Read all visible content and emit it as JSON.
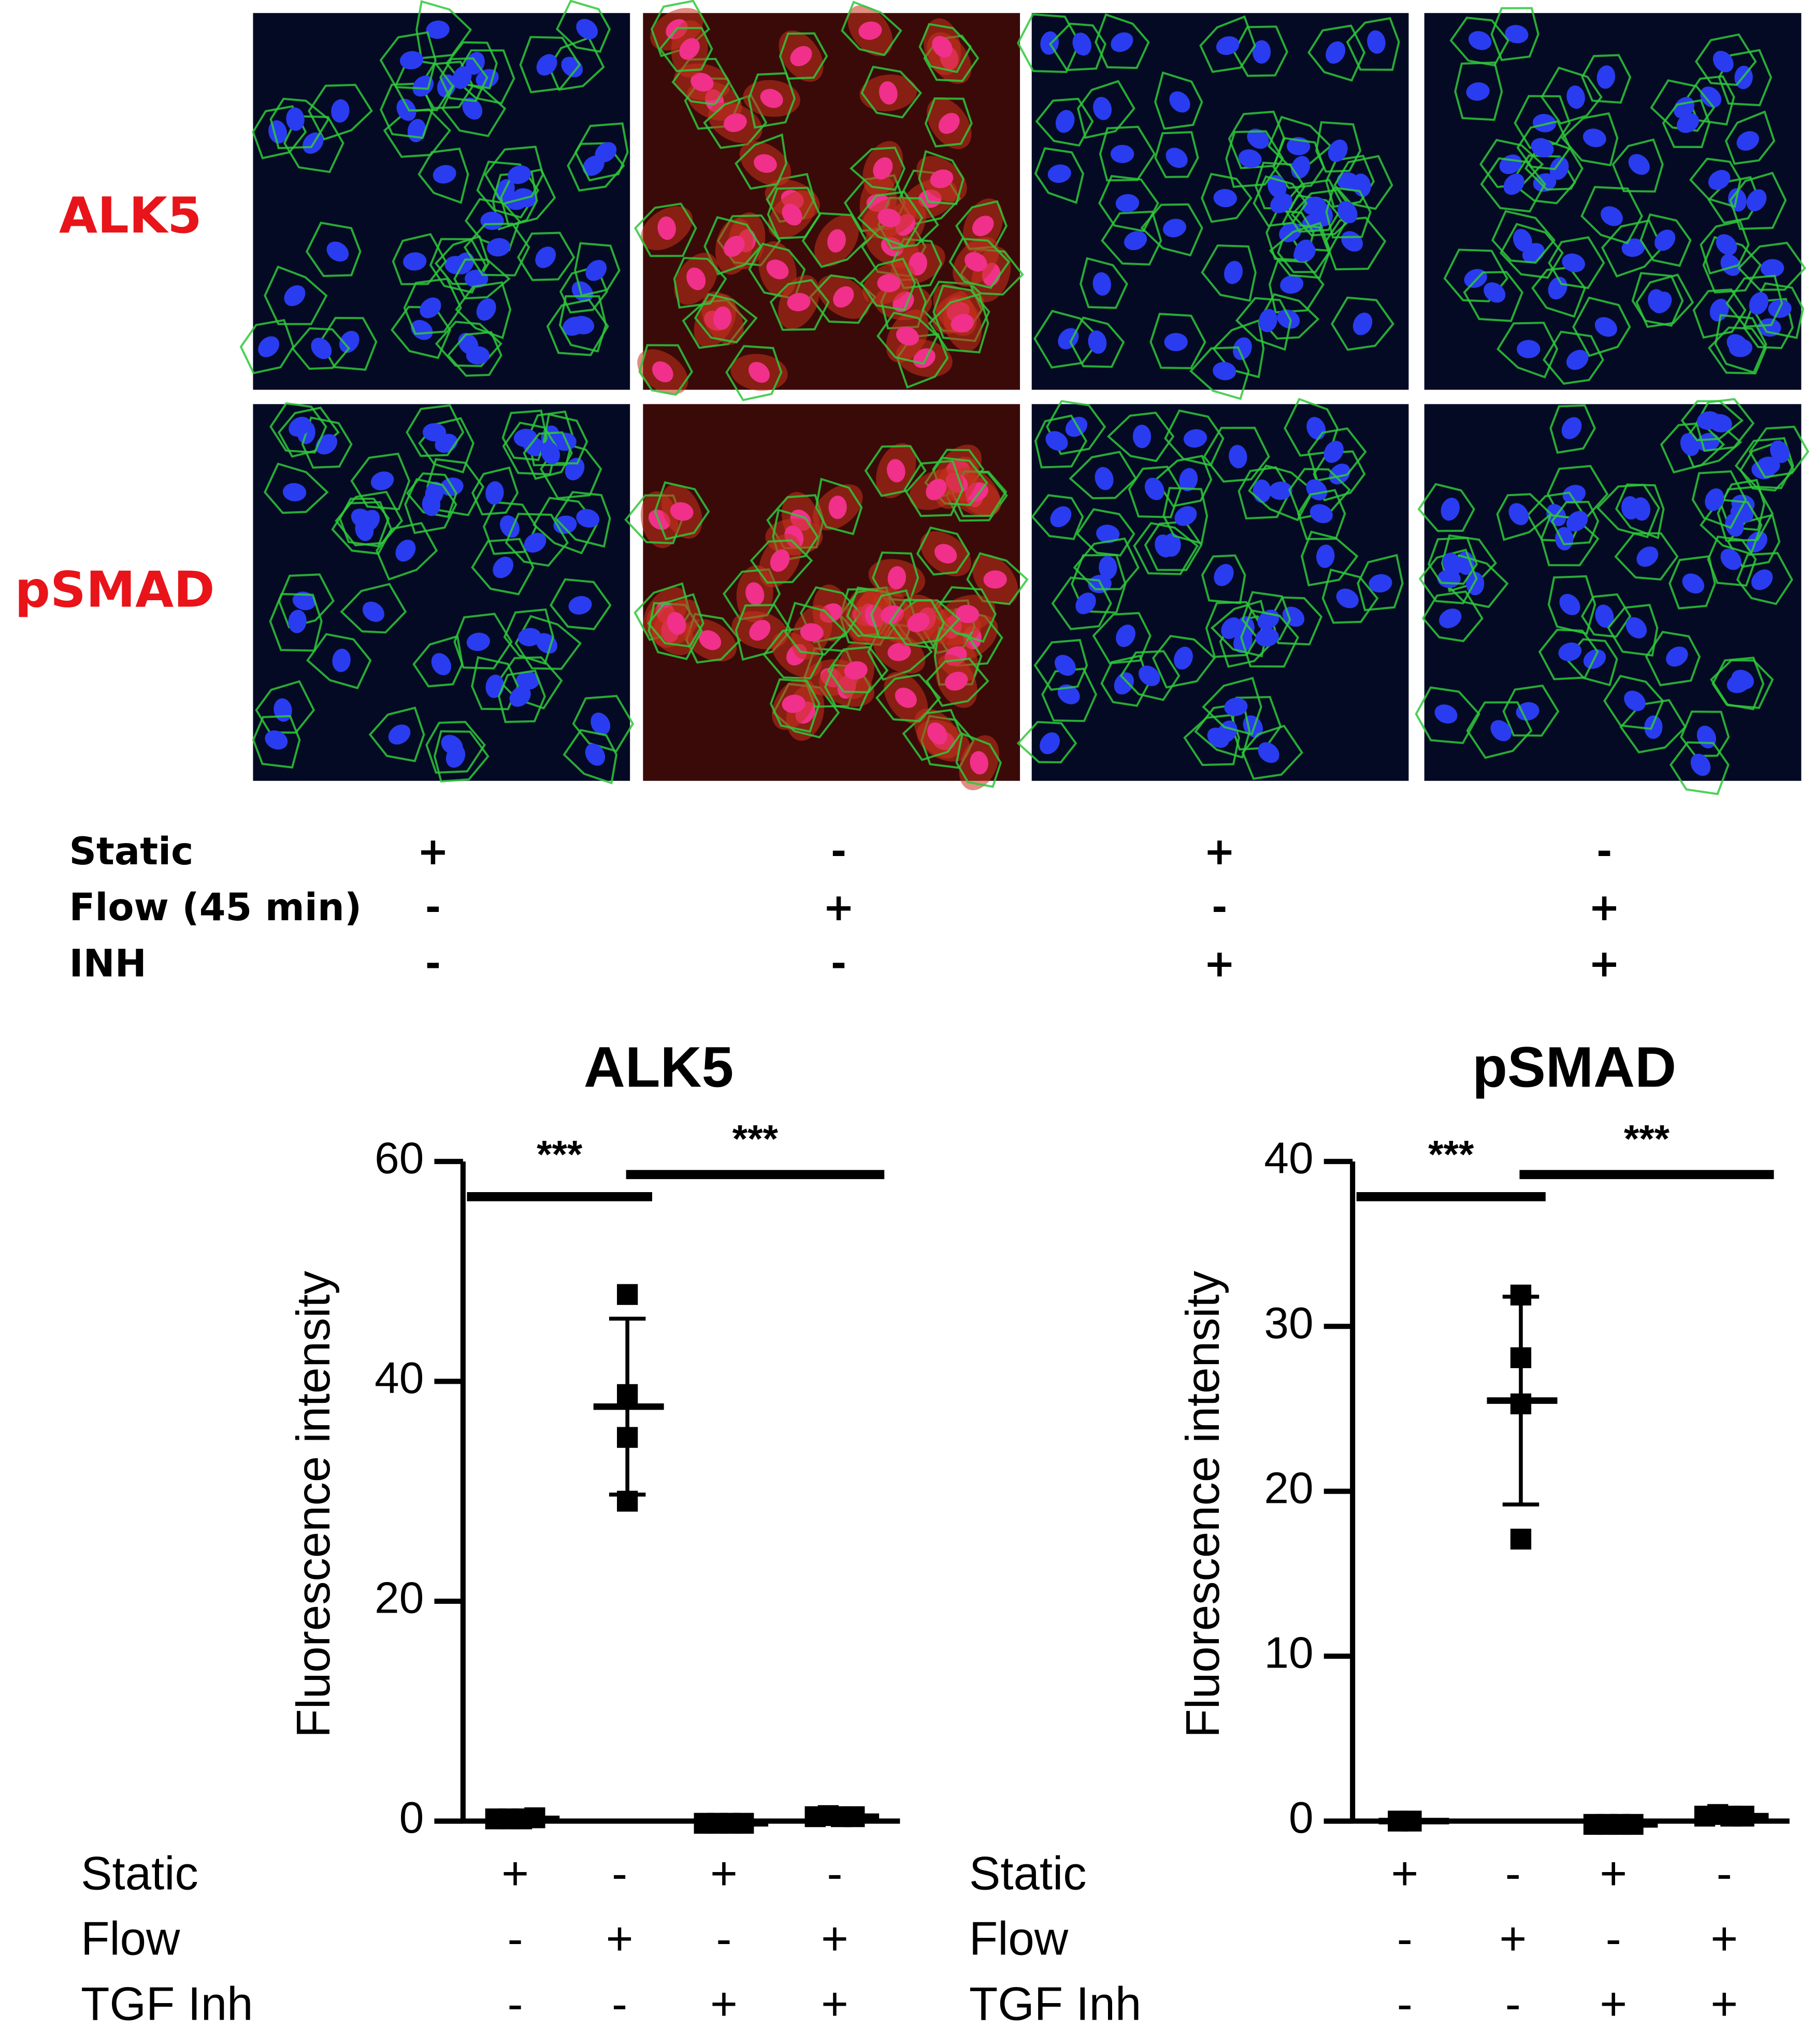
{
  "panel_rows": [
    "ALK5",
    "pSMAD"
  ],
  "conditions": [
    {
      "name": "Static",
      "signs": [
        "+",
        "-",
        "+",
        "-"
      ]
    },
    {
      "name": "Flow (45 min)",
      "signs": [
        "-",
        "+",
        "-",
        "+"
      ]
    },
    {
      "name": "INH",
      "signs": [
        "-",
        "-",
        "+",
        "+"
      ]
    }
  ],
  "chart_data": [
    {
      "type": "dot",
      "title": "ALK5",
      "y_label": "Fluorescence intensity",
      "ylim": [
        0,
        60
      ],
      "yticks": [
        0,
        20,
        40,
        60
      ],
      "groups": [
        {
          "values": [
            0.2,
            0.2,
            0.2,
            0.3
          ],
          "mean": 0.2,
          "sd": 0.1
        },
        {
          "values": [
            47.9,
            38.8,
            34.9,
            29.1
          ],
          "mean": 37.7,
          "sd": 8
        },
        {
          "values": [
            -0.2,
            -0.2,
            -0.2,
            -0.2
          ],
          "mean": -0.2,
          "sd": 0.1
        },
        {
          "values": [
            0.4,
            0.5,
            0.4,
            0.4
          ],
          "mean": 0.4,
          "sd": 0.1
        }
      ],
      "significance": [
        "***",
        "***"
      ],
      "conditions": [
        {
          "name": "Static",
          "signs": [
            "+",
            "-",
            "+",
            "-"
          ]
        },
        {
          "name": "Flow",
          "signs": [
            "-",
            "+",
            "-",
            "+"
          ]
        },
        {
          "name": "TGF Inh",
          "signs": [
            "-",
            "-",
            "+",
            "+"
          ]
        }
      ]
    },
    {
      "type": "dot",
      "title": "pSMAD",
      "y_label": "Fluorescence intensity",
      "ylim": [
        0,
        40
      ],
      "yticks": [
        0,
        10,
        20,
        30,
        40
      ],
      "groups": [
        {
          "values": [
            0,
            0
          ],
          "mean": 0,
          "sd": 0
        },
        {
          "values": [
            31.9,
            28.1,
            25.3,
            17.1
          ],
          "mean": 25.5,
          "sd": 6.3
        },
        {
          "values": [
            -0.2,
            -0.2,
            -0.2,
            -0.2
          ],
          "mean": -0.2,
          "sd": 0.1
        },
        {
          "values": [
            0.3,
            0.4,
            0.3,
            0.3
          ],
          "mean": 0.3,
          "sd": 0.1
        }
      ],
      "significance": [
        "***",
        "***"
      ],
      "conditions": [
        {
          "name": "Static",
          "signs": [
            "+",
            "-",
            "+",
            "-"
          ]
        },
        {
          "name": "Flow",
          "signs": [
            "-",
            "+",
            "-",
            "+"
          ]
        },
        {
          "name": "TGF Inh",
          "signs": [
            "-",
            "-",
            "+",
            "+"
          ]
        }
      ]
    }
  ]
}
